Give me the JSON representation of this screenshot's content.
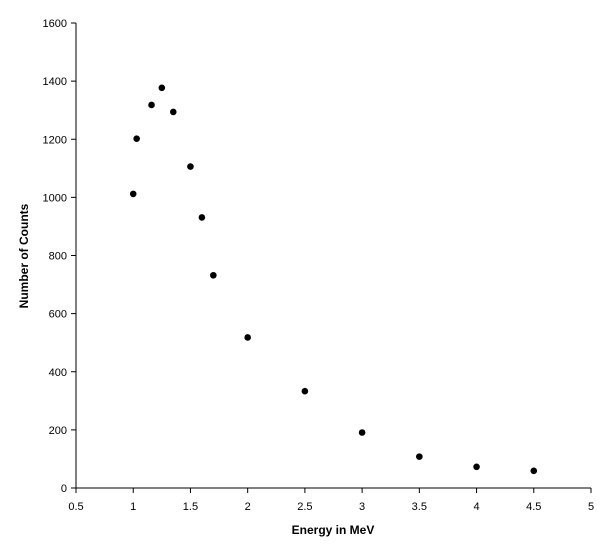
{
  "chart_data": {
    "type": "scatter",
    "title": "",
    "xlabel": "Energy in MeV",
    "ylabel": "Number of Counts",
    "xlim": [
      0.5,
      5
    ],
    "ylim": [
      0,
      1600
    ],
    "xticks": [
      "0.5",
      "1",
      "1.5",
      "2",
      "2.5",
      "3",
      "3.5",
      "4",
      "4.5",
      "5"
    ],
    "yticks": [
      "0",
      "200",
      "400",
      "600",
      "800",
      "1000",
      "1200",
      "1400",
      "1600"
    ],
    "grid": false,
    "legend": "none",
    "marker_color": "#000000",
    "x": [
      1.0,
      1.03,
      1.16,
      1.25,
      1.35,
      1.5,
      1.6,
      1.7,
      2.0,
      2.5,
      3.0,
      3.5,
      4.0,
      4.5
    ],
    "y": [
      1012,
      1202,
      1318,
      1377,
      1294,
      1106,
      931,
      732,
      518,
      333,
      191,
      108,
      73,
      59
    ]
  }
}
